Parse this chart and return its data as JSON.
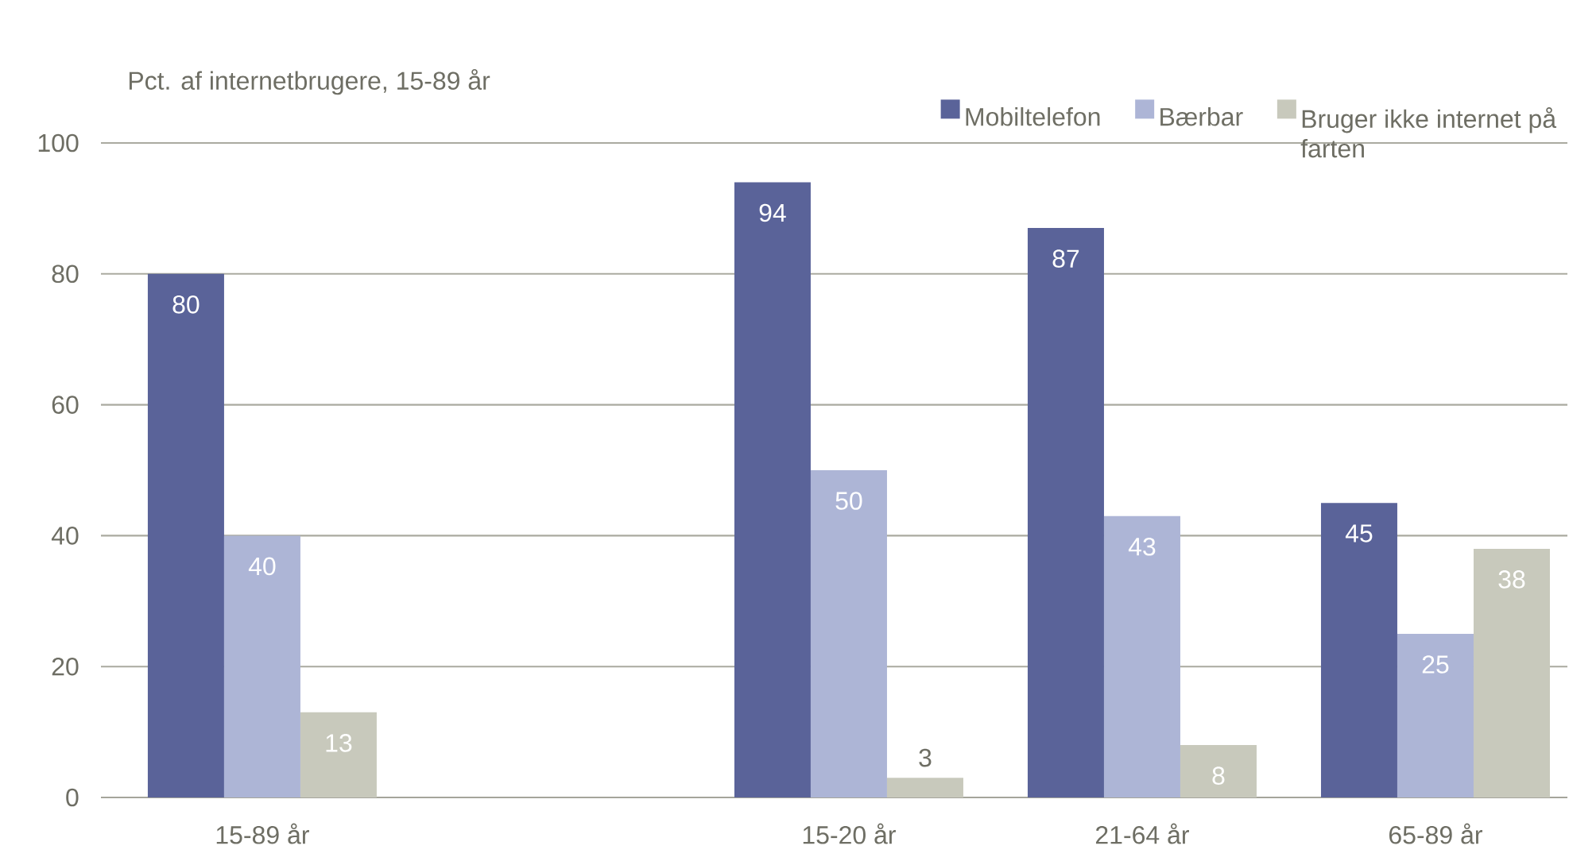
{
  "chart_data": {
    "type": "bar",
    "ylabel": "Pct. af internetbrugere, 15-89 år",
    "categories": [
      "15-89 år",
      null,
      "15-20 år",
      "21-64 år",
      "65-89 år"
    ],
    "series": [
      {
        "name": "Mobiltelefon",
        "color": "#5a6399",
        "values": [
          80,
          null,
          94,
          87,
          45
        ]
      },
      {
        "name": "Bærbar",
        "color": "#adb5d6",
        "values": [
          40,
          null,
          50,
          43,
          25
        ]
      },
      {
        "name": "Bruger ikke internet på farten",
        "color": "#c8c9bc",
        "values": [
          13,
          null,
          3,
          8,
          38
        ]
      }
    ],
    "ylim": [
      0,
      100
    ],
    "yticks": [
      0,
      20,
      40,
      60,
      80,
      100
    ],
    "grid": "y",
    "legend": "top right",
    "data_labels": true
  }
}
